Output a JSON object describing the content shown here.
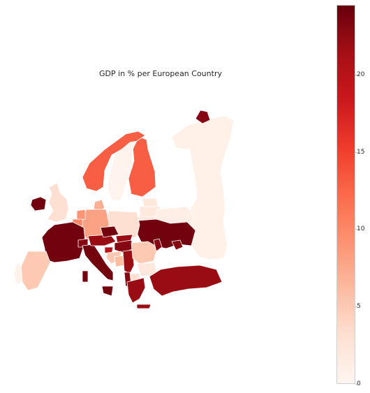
{
  "title": "GDP in % per European Country",
  "colorbar": {
    "colormap": "Reds",
    "colors": [
      "#fff5f0",
      "#fee0d2",
      "#fcbba1",
      "#fc9272",
      "#fb6a4a",
      "#ef3b2c",
      "#cb181d",
      "#a50f15",
      "#67000d"
    ],
    "min": 0,
    "max": 24.5,
    "ticks": [
      {
        "value": 0,
        "label": "0"
      },
      {
        "value": 5,
        "label": "5"
      },
      {
        "value": 10,
        "label": "10"
      },
      {
        "value": 15,
        "label": "15"
      },
      {
        "value": 20,
        "label": "20"
      }
    ]
  },
  "regions": [
    {
      "name": "russia",
      "value": 0.8
    },
    {
      "name": "finland",
      "value": 13
    },
    {
      "name": "sweden",
      "value": 0.3
    },
    {
      "name": "norway",
      "value": 13
    },
    {
      "name": "denmark",
      "value": 7
    },
    {
      "name": "estonia",
      "value": 2
    },
    {
      "name": "latvia",
      "value": 2
    },
    {
      "name": "lithuania",
      "value": 2
    },
    {
      "name": "belarus",
      "value": 1
    },
    {
      "name": "ukraine",
      "value": 24
    },
    {
      "name": "poland",
      "value": 3
    },
    {
      "name": "germany",
      "value": 8
    },
    {
      "name": "netherlands",
      "value": 9
    },
    {
      "name": "belgium",
      "value": 10
    },
    {
      "name": "france",
      "value": 24
    },
    {
      "name": "uk",
      "value": 3
    },
    {
      "name": "ireland",
      "value": 24
    },
    {
      "name": "spain",
      "value": 5
    },
    {
      "name": "portugal",
      "value": 0.5
    },
    {
      "name": "italy",
      "value": 24
    },
    {
      "name": "switzerland",
      "value": 23
    },
    {
      "name": "austria",
      "value": 22
    },
    {
      "name": "czechia",
      "value": 24
    },
    {
      "name": "slovakia",
      "value": 22
    },
    {
      "name": "hungary",
      "value": 23
    },
    {
      "name": "slovenia",
      "value": 20
    },
    {
      "name": "croatia",
      "value": 5
    },
    {
      "name": "bosnia",
      "value": 6
    },
    {
      "name": "serbia",
      "value": 22
    },
    {
      "name": "romania",
      "value": 5
    },
    {
      "name": "moldova",
      "value": 23
    },
    {
      "name": "bulgaria",
      "value": 2
    },
    {
      "name": "macedonia",
      "value": 3
    },
    {
      "name": "albania",
      "value": 23
    },
    {
      "name": "greece",
      "value": 22
    },
    {
      "name": "turkey",
      "value": 22
    },
    {
      "name": "cyprus-russia-enclave",
      "value": 23
    },
    {
      "name": "kaliningrad",
      "value": 23
    }
  ]
}
